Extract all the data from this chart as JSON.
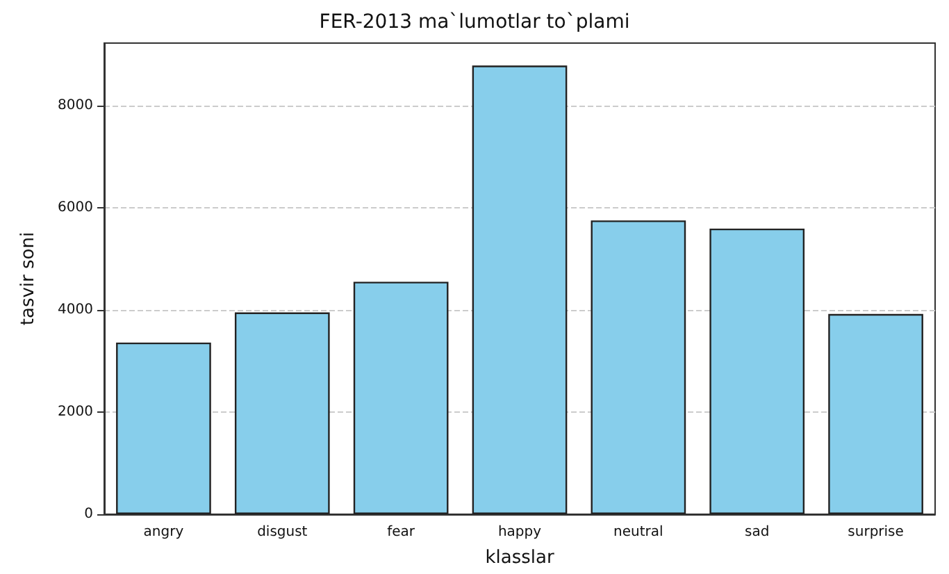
{
  "chart_data": {
    "type": "bar",
    "title": "FER-2013 ma`lumotlar to`plami",
    "xlabel": "klasslar",
    "ylabel": "tasvir soni",
    "categories": [
      "angry",
      "disgust",
      "fear",
      "happy",
      "neutral",
      "sad",
      "surprise"
    ],
    "values": [
      3360,
      3950,
      4550,
      8780,
      5750,
      5590,
      3920
    ],
    "color": "#87ceeb",
    "ylim": [
      0,
      9220
    ],
    "yticks": [
      0,
      2000,
      4000,
      6000,
      8000
    ],
    "grid": "y"
  }
}
